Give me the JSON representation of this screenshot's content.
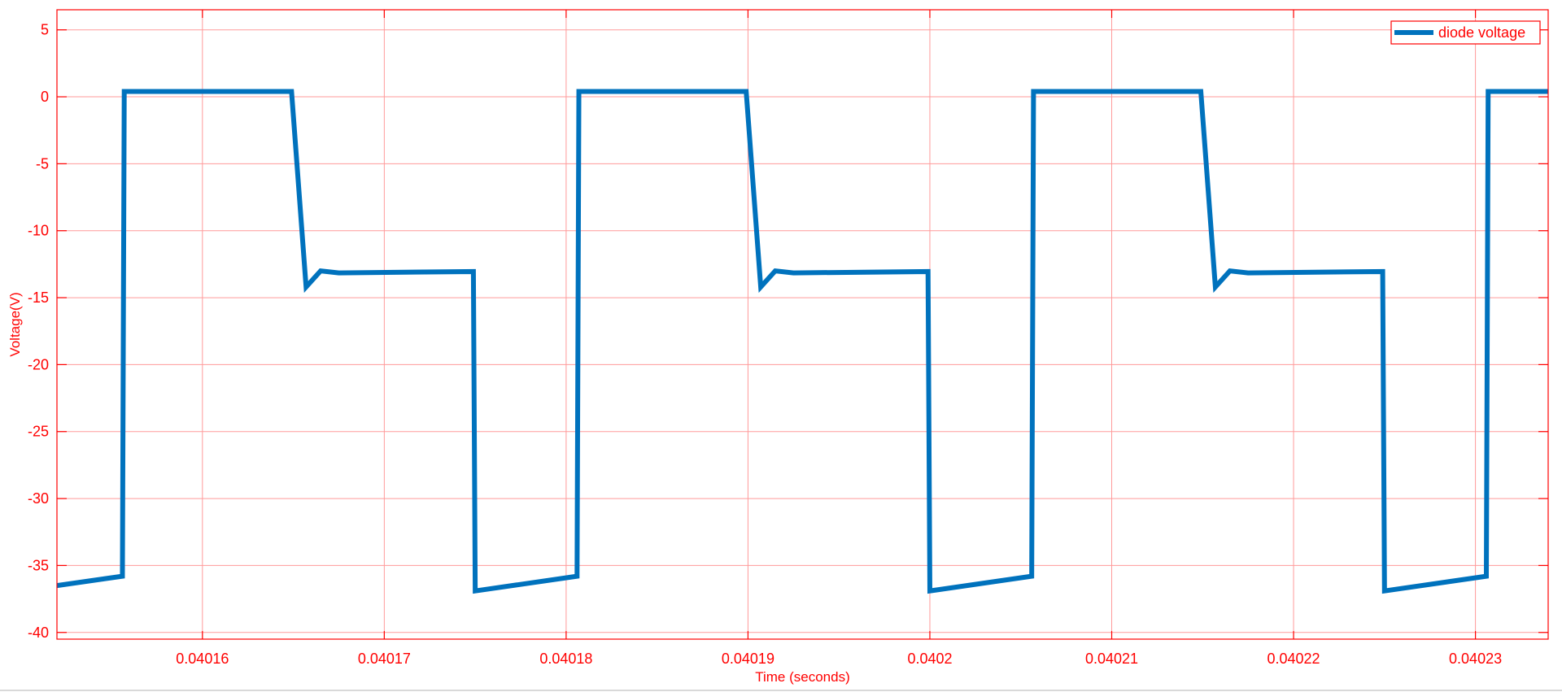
{
  "chart_data": {
    "type": "line",
    "xlabel": "Time (seconds)",
    "ylabel": "Voltage(V)",
    "xlim": [
      0.040152,
      0.040234
    ],
    "ylim": [
      -40.5,
      6.5
    ],
    "xticks": [
      0.04016,
      0.04017,
      0.04018,
      0.04019,
      0.0402,
      0.04021,
      0.04022,
      0.04023
    ],
    "xtick_labels": [
      "0.04016",
      "0.04017",
      "0.04018",
      "0.04019",
      "0.0402",
      "0.04021",
      "0.04022",
      "0.04023"
    ],
    "yticks": [
      5,
      0,
      -5,
      -10,
      -15,
      -20,
      -25,
      -30,
      -35,
      -40
    ],
    "ytick_labels": [
      "5",
      "0",
      "-5",
      "-10",
      "-15",
      "-20",
      "-25",
      "-30",
      "-35",
      "-40"
    ],
    "grid": true,
    "legend_position": "top-right",
    "colors": {
      "axes": "#ff0000",
      "grid": "#ff9a9a",
      "series": "#0072bd"
    },
    "series": [
      {
        "name": "diode voltage",
        "x": [
          0.040152,
          0.0401556,
          0.0401557,
          0.0401649,
          0.0401657,
          0.0401665,
          0.0401675,
          0.0401749,
          0.040175,
          0.0401806,
          0.0401807,
          0.0401899,
          0.0401907,
          0.0401915,
          0.0401925,
          0.0401999,
          0.0402,
          0.0402056,
          0.0402057,
          0.0402149,
          0.0402157,
          0.0402165,
          0.0402175,
          0.0402249,
          0.040225,
          0.0402306,
          0.0402307,
          0.040234
        ],
        "y": [
          -36.5,
          -35.8,
          0.4,
          0.4,
          -14.2,
          -13.0,
          -13.15,
          -13.05,
          -36.9,
          -35.8,
          0.4,
          0.4,
          -14.2,
          -13.0,
          -13.15,
          -13.05,
          -36.9,
          -35.8,
          0.4,
          0.4,
          -14.2,
          -13.0,
          -13.15,
          -13.05,
          -36.9,
          -35.8,
          0.4,
          0.4
        ]
      }
    ]
  }
}
